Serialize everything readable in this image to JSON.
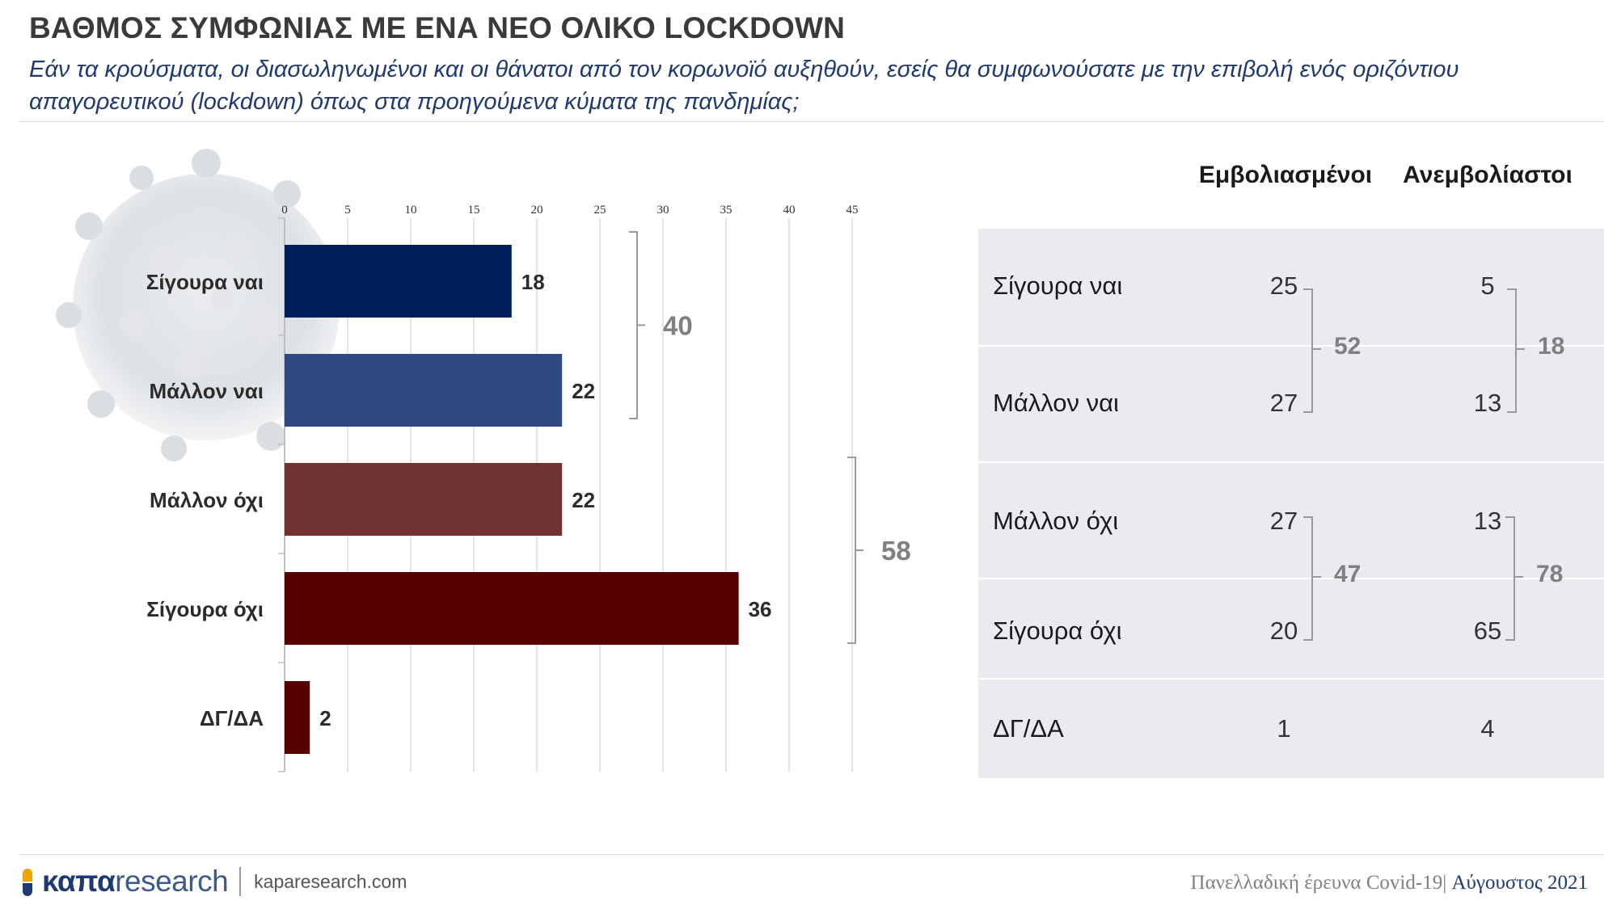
{
  "header": {
    "title": "ΒΑΘΜΟΣ ΣΥΜΦΩΝΙΑΣ ΜΕ ΕΝΑ ΝΕΟ ΟΛΙΚΟ LOCKDOWN",
    "subtitle": "Εάν τα κρούσματα, οι διασωληνωμένοι και οι θάνατοι από τον κορωνοϊό αυξηθούν, εσείς θα συμφωνούσατε με την επιβολή ενός οριζόντιου απαγορευτικού (lockdown) όπως στα προηγούμενα κύματα της πανδημίας;"
  },
  "chart_data": {
    "type": "bar",
    "orientation": "horizontal",
    "categories": [
      "Σίγουρα ναι",
      "Μάλλον ναι",
      "Μάλλον όχι",
      "Σίγουρα όχι",
      "ΔΓ/ΔΑ"
    ],
    "values": [
      18,
      22,
      22,
      36,
      2
    ],
    "colors": [
      "#00205b",
      "#2e4a80",
      "#713232",
      "#560000",
      "#560000"
    ],
    "xlim": [
      0,
      45
    ],
    "xticks": [
      0,
      5,
      10,
      15,
      20,
      25,
      30,
      35,
      40,
      45
    ],
    "grid": true,
    "groups": [
      {
        "rows": [
          0,
          1
        ],
        "total": "40"
      },
      {
        "rows": [
          2,
          3
        ],
        "total": "58"
      }
    ]
  },
  "table": {
    "columns": [
      "Εμβολιασμένοι",
      "Ανεμβολίαστοι"
    ],
    "rows": [
      {
        "label": "Σίγουρα ναι",
        "values": [
          "25",
          "5"
        ]
      },
      {
        "label": "Μάλλον ναι",
        "values": [
          "27",
          "13"
        ]
      },
      {
        "label": "Μάλλον όχι",
        "values": [
          "27",
          "13"
        ]
      },
      {
        "label": "Σίγουρα όχι",
        "values": [
          "20",
          "65"
        ]
      },
      {
        "label": "ΔΓ/ΔΑ",
        "values": [
          "1",
          "4"
        ]
      }
    ],
    "group_totals": {
      "yes_vaccinated": "52",
      "yes_unvaccinated": "18",
      "no_vaccinated": "47",
      "no_unvaccinated": "78"
    }
  },
  "footer": {
    "logo_bold": "καπα",
    "logo_light": "research",
    "site": "kaparesearch.com",
    "survey": "Πανελλαδική έρευνα Covid-19",
    "separator": "|",
    "date": "Αύγουστος 2021"
  },
  "colors": {
    "accent": "#1f3a73",
    "panel": "#e9ebf0",
    "logo_orange": "#f0a500"
  }
}
